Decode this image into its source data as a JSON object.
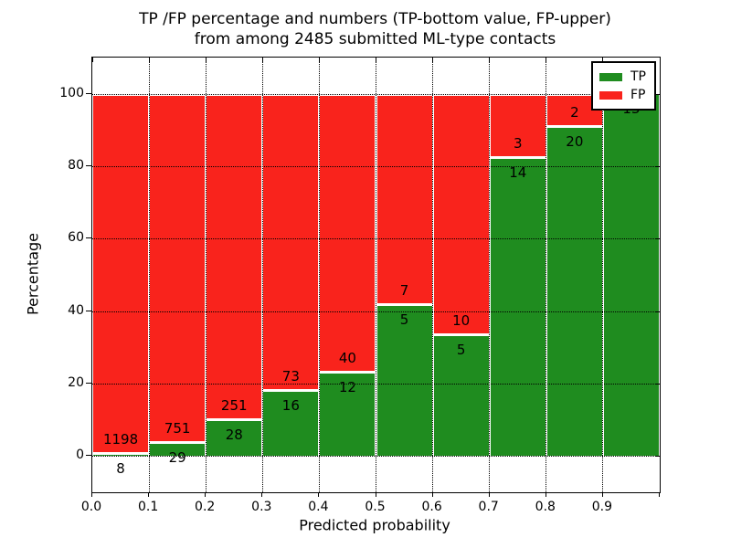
{
  "chart_data": {
    "type": "bar",
    "stacked": true,
    "normalized_to_percent": true,
    "title_line1": "TP /FP percentage and numbers (TP-bottom value, FP-upper)",
    "title_line2": "from among 2485 submitted ML-type contacts",
    "title": "TP /FP percentage and numbers (TP-bottom value, FP-upper) from among 2485 submitted ML-type contacts",
    "xlabel": "Predicted probability",
    "ylabel": "Percentage",
    "xlim": [
      0.0,
      1.0
    ],
    "ylim": [
      -10,
      110
    ],
    "grid": true,
    "x_tick_values": [
      0.0,
      0.1,
      0.2,
      0.3,
      0.4,
      0.5,
      0.6,
      0.7,
      0.8,
      0.9
    ],
    "x_tick_labels": [
      "0.0",
      "0.1",
      "0.2",
      "0.3",
      "0.4",
      "0.5",
      "0.6",
      "0.7",
      "0.8",
      "0.9"
    ],
    "y_tick_values": [
      0,
      20,
      40,
      60,
      80,
      100
    ],
    "y_tick_labels": [
      "0",
      "20",
      "40",
      "60",
      "80",
      "100"
    ],
    "legend": {
      "position": "upper right",
      "entries": [
        {
          "label": "TP",
          "color": "#1f8c1f"
        },
        {
          "label": "FP",
          "color": "#f9231c"
        }
      ]
    },
    "colors": {
      "tp": "#1f8c1f",
      "fp": "#f9231c",
      "bar_edge": "#ffffff",
      "grid": "#000000",
      "text": "#000000",
      "background": "#ffffff"
    },
    "bins": [
      {
        "x_start": 0.0,
        "x_end": 0.1,
        "tp": 8,
        "fp": 1198
      },
      {
        "x_start": 0.1,
        "x_end": 0.2,
        "tp": 29,
        "fp": 751
      },
      {
        "x_start": 0.2,
        "x_end": 0.3,
        "tp": 28,
        "fp": 251
      },
      {
        "x_start": 0.3,
        "x_end": 0.4,
        "tp": 16,
        "fp": 73
      },
      {
        "x_start": 0.4,
        "x_end": 0.5,
        "tp": 12,
        "fp": 40
      },
      {
        "x_start": 0.5,
        "x_end": 0.6,
        "tp": 5,
        "fp": 7
      },
      {
        "x_start": 0.6,
        "x_end": 0.7,
        "tp": 5,
        "fp": 10
      },
      {
        "x_start": 0.7,
        "x_end": 0.8,
        "tp": 14,
        "fp": 3
      },
      {
        "x_start": 0.8,
        "x_end": 0.9,
        "tp": 20,
        "fp": 2
      },
      {
        "x_start": 0.9,
        "x_end": 1.0,
        "tp": 13,
        "fp": 0
      }
    ]
  }
}
